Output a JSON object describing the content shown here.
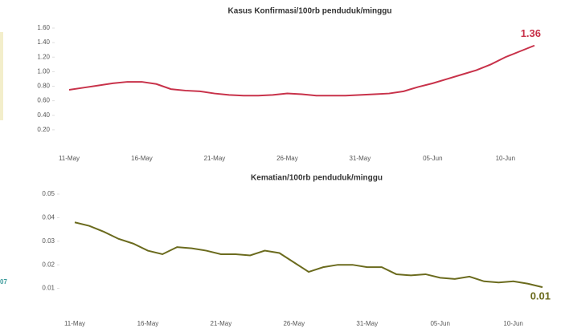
{
  "chart_data": [
    {
      "type": "line",
      "title": "Kasus Konfirmasi/100rb penduduk/minggu",
      "categories": [
        "11-May",
        null,
        null,
        null,
        null,
        "16-May",
        null,
        null,
        null,
        null,
        "21-May",
        null,
        null,
        null,
        null,
        "26-May",
        null,
        null,
        null,
        null,
        "31-May",
        null,
        null,
        null,
        null,
        "05-Jun",
        null,
        null,
        null,
        null,
        "10-Jun",
        null,
        null
      ],
      "series": [
        {
          "name": "Kasus Konfirmasi",
          "color": "#c8324a",
          "values": [
            0.75,
            0.78,
            0.81,
            0.84,
            0.86,
            0.86,
            0.83,
            0.76,
            0.74,
            0.73,
            0.7,
            0.68,
            0.67,
            0.67,
            0.68,
            0.7,
            0.69,
            0.67,
            0.67,
            0.67,
            0.68,
            0.69,
            0.7,
            0.73,
            0.79,
            0.84,
            0.9,
            0.96,
            1.02,
            1.1,
            1.2,
            1.28,
            1.36
          ]
        }
      ],
      "ylim": [
        0,
        1.6
      ],
      "yticks": [
        {
          "value": 0.2,
          "label": "0.20"
        },
        {
          "value": 0.4,
          "label": "0.40"
        },
        {
          "value": 0.6,
          "label": "0.60"
        },
        {
          "value": 0.8,
          "label": "0.80"
        },
        {
          "value": 1.0,
          "label": "1.00"
        },
        {
          "value": 1.2,
          "label": "1.20"
        },
        {
          "value": 1.4,
          "label": "1.40"
        },
        {
          "value": 1.6,
          "label": "1.60"
        }
      ]
    },
    {
      "type": "line",
      "title": "Kematian/100rb penduduk/minggu",
      "categories": [
        "11-May",
        null,
        null,
        null,
        null,
        "16-May",
        null,
        null,
        null,
        null,
        "21-May",
        null,
        null,
        null,
        null,
        "26-May",
        null,
        null,
        null,
        null,
        "31-May",
        null,
        null,
        null,
        null,
        "05-Jun",
        null,
        null,
        null,
        null,
        "10-Jun",
        null,
        null
      ],
      "series": [
        {
          "name": "Kematian",
          "color": "#6b6b1e",
          "values": [
            0.038,
            0.0365,
            0.034,
            0.031,
            0.029,
            0.026,
            0.0245,
            0.0275,
            0.027,
            0.026,
            0.0245,
            0.0245,
            0.024,
            0.026,
            0.025,
            0.021,
            0.017,
            0.019,
            0.02,
            0.02,
            0.019,
            0.019,
            0.016,
            0.0155,
            0.016,
            0.0145,
            0.014,
            0.015,
            0.013,
            0.0125,
            0.013,
            0.012,
            0.0105
          ],
          "value_labels": [
            null,
            null,
            null,
            null,
            null,
            null,
            null,
            null,
            null,
            null,
            null,
            null,
            null,
            null,
            null,
            null,
            null,
            null,
            null,
            null,
            null,
            null,
            null,
            null,
            null,
            null,
            null,
            null,
            null,
            null,
            null,
            null,
            "0.01"
          ]
        }
      ],
      "ylim": [
        0,
        0.05
      ],
      "yticks": [
        0.01,
        0.02,
        0.03,
        0.04,
        0.05
      ]
    }
  ],
  "fragments": [
    "07"
  ]
}
